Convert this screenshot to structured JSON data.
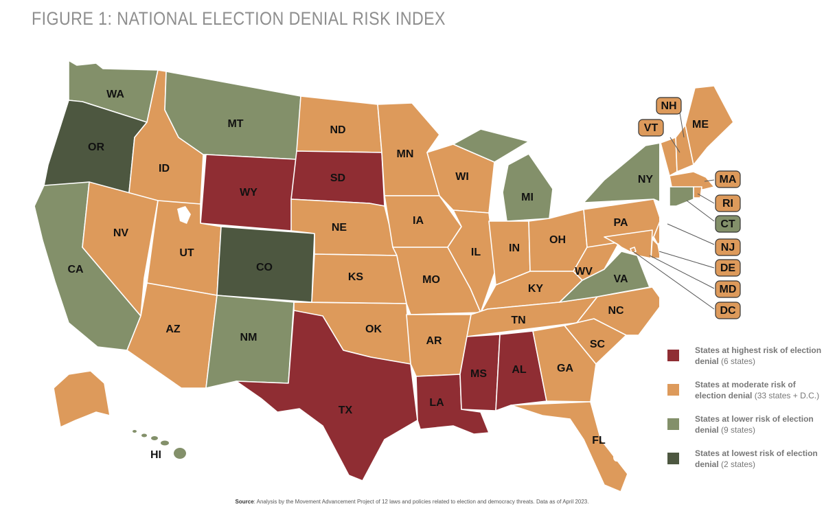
{
  "title": "FIGURE 1: NATIONAL ELECTION DENIAL RISK INDEX",
  "colors": {
    "highest": "#8f2d33",
    "moderate": "#dd9a5b",
    "lower": "#83906a",
    "lowest": "#4d5740",
    "border": "#ffffff"
  },
  "legend": [
    {
      "label": "States at highest risk of election denial",
      "count": "(6 states)",
      "level": "highest"
    },
    {
      "label": "States at moderate risk of election denial",
      "count": "(33 states + D.C.)",
      "level": "moderate"
    },
    {
      "label": "States at lower risk of election denial",
      "count": "(9 states)",
      "level": "lower"
    },
    {
      "label": "States at lowest risk of election denial",
      "count": "(2 states)",
      "level": "lowest"
    }
  ],
  "states": {
    "WA": "lower",
    "OR": "lowest",
    "CA": "lower",
    "ID": "moderate",
    "NV": "moderate",
    "MT": "lower",
    "WY": "highest",
    "UT": "moderate",
    "AZ": "moderate",
    "CO": "lowest",
    "NM": "lower",
    "ND": "moderate",
    "SD": "highest",
    "NE": "moderate",
    "KS": "moderate",
    "OK": "moderate",
    "TX": "highest",
    "MN": "moderate",
    "IA": "moderate",
    "MO": "moderate",
    "AR": "moderate",
    "LA": "highest",
    "WI": "moderate",
    "IL": "moderate",
    "MI": "lower",
    "IN": "moderate",
    "OH": "moderate",
    "KY": "moderate",
    "TN": "moderate",
    "MS": "highest",
    "AL": "highest",
    "GA": "moderate",
    "FL": "moderate",
    "SC": "moderate",
    "NC": "moderate",
    "VA": "lower",
    "WV": "moderate",
    "PA": "moderate",
    "NY": "lower",
    "VT": "moderate",
    "NH": "moderate",
    "ME": "moderate",
    "MA": "moderate",
    "RI": "moderate",
    "CT": "lower",
    "NJ": "moderate",
    "DE": "moderate",
    "MD": "moderate",
    "DC": "moderate",
    "AK": "moderate",
    "HI": "lower"
  },
  "source_label": "Source",
  "source_text": ": Analysis by the Movement Advancement Project of 12 laws and policies related to election and democracy threats. Data as of April 2023."
}
